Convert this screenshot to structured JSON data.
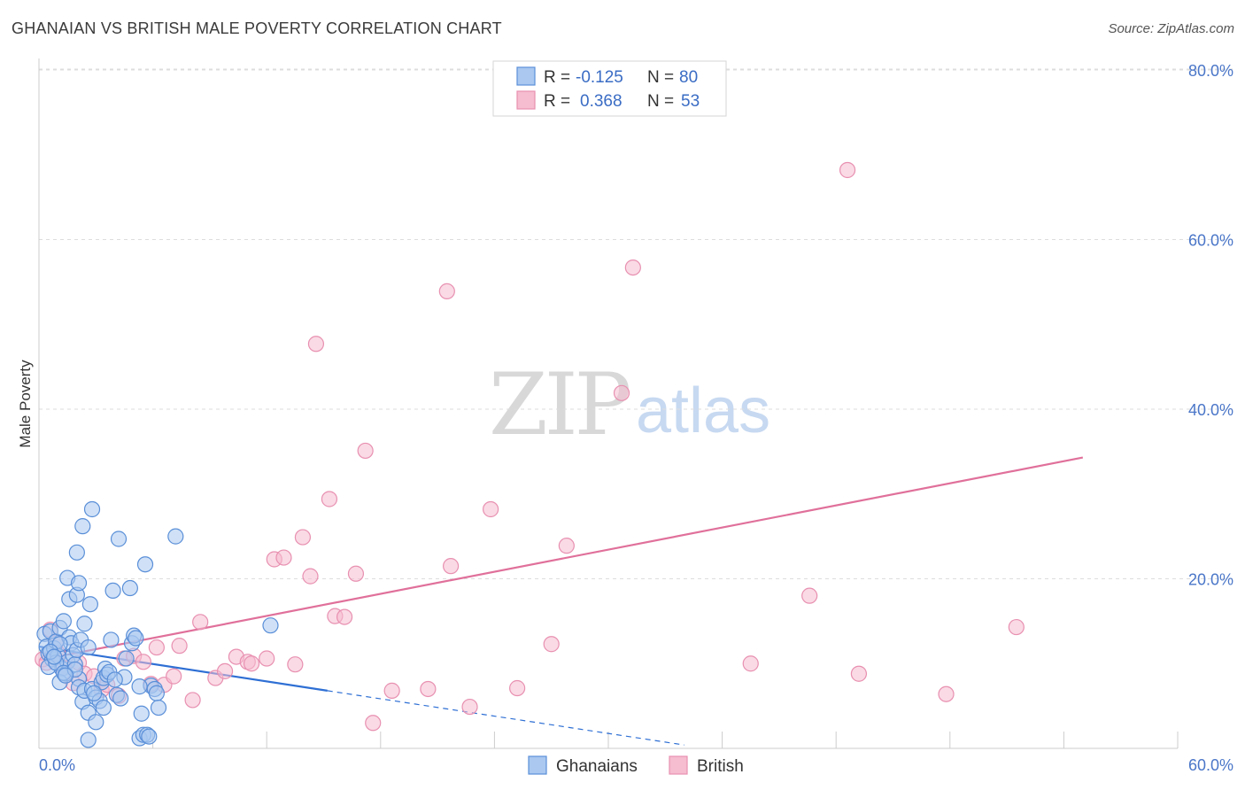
{
  "title": "GHANAIAN VS BRITISH MALE POVERTY CORRELATION CHART",
  "source": "Source: ZipAtlas.com",
  "watermark": {
    "zip": "ZIP",
    "atlas": "atlas"
  },
  "legend": {
    "rows": [
      {
        "r_label": "R =",
        "r_value": "-0.125",
        "n_label": "N =",
        "n_value": "80"
      },
      {
        "r_label": "R =",
        "r_value": "0.368",
        "n_label": "N =",
        "n_value": "53"
      }
    ]
  },
  "bottom_legend": [
    "Ghanaians",
    "British"
  ],
  "colors": {
    "blue_fill": "#aac8f0",
    "blue_stroke": "#5a8fd8",
    "blue_line": "#2e6fd4",
    "pink_fill": "#f6bcd0",
    "pink_stroke": "#e890b0",
    "pink_line": "#e0709a",
    "grid": "#dddddd",
    "tick": "#4a76c8"
  },
  "chart_data": {
    "type": "scatter",
    "title": "GHANAIAN VS BRITISH MALE POVERTY CORRELATION CHART",
    "xlabel": "",
    "ylabel": "Male Poverty",
    "xlim": [
      0,
      60
    ],
    "ylim": [
      0,
      82
    ],
    "x_tick_labels": [
      "0.0%",
      "60.0%"
    ],
    "y_ticks": [
      20,
      40,
      60,
      80
    ],
    "y_tick_labels": [
      "20.0%",
      "40.0%",
      "60.0%",
      "80.0%"
    ],
    "series": [
      {
        "name": "Ghanaians",
        "R": -0.125,
        "N": 80,
        "trend": {
          "x": [
            0,
            15.2
          ],
          "y": [
            12.0,
            6.8
          ]
        },
        "trend_extension": {
          "x": [
            15.2,
            34
          ],
          "y": [
            6.8,
            0.4
          ]
        },
        "points": [
          [
            0.3,
            13.5
          ],
          [
            0.4,
            12.0
          ],
          [
            0.5,
            11.2
          ],
          [
            0.6,
            13.8
          ],
          [
            0.7,
            10.5
          ],
          [
            0.8,
            11.8
          ],
          [
            0.9,
            12.6
          ],
          [
            1.0,
            10.9
          ],
          [
            1.1,
            14.2
          ],
          [
            1.2,
            9.4
          ],
          [
            1.3,
            15.0
          ],
          [
            1.4,
            8.8
          ],
          [
            1.5,
            10.2
          ],
          [
            1.6,
            13.1
          ],
          [
            1.7,
            12.4
          ],
          [
            1.8,
            11.0
          ],
          [
            1.9,
            9.9
          ],
          [
            2.0,
            11.6
          ],
          [
            2.1,
            8.2
          ],
          [
            2.2,
            12.8
          ],
          [
            2.4,
            14.7
          ],
          [
            2.6,
            11.9
          ],
          [
            0.5,
            9.6
          ],
          [
            0.9,
            10.1
          ],
          [
            1.1,
            7.8
          ],
          [
            1.3,
            8.9
          ],
          [
            1.5,
            20.1
          ],
          [
            1.6,
            17.6
          ],
          [
            2.0,
            18.1
          ],
          [
            2.1,
            19.5
          ],
          [
            2.3,
            26.2
          ],
          [
            2.0,
            23.1
          ],
          [
            2.7,
            17.0
          ],
          [
            2.8,
            28.2
          ],
          [
            1.9,
            9.3
          ],
          [
            2.1,
            7.2
          ],
          [
            2.3,
            5.5
          ],
          [
            2.4,
            6.8
          ],
          [
            2.6,
            4.2
          ],
          [
            2.6,
            1.0
          ],
          [
            2.8,
            7.0
          ],
          [
            3.0,
            6.0
          ],
          [
            3.2,
            5.6
          ],
          [
            3.3,
            7.8
          ],
          [
            3.4,
            8.3
          ],
          [
            3.5,
            9.4
          ],
          [
            3.6,
            8.7
          ],
          [
            3.7,
            9.0
          ],
          [
            3.8,
            12.8
          ],
          [
            3.9,
            18.6
          ],
          [
            4.1,
            6.3
          ],
          [
            4.2,
            24.7
          ],
          [
            4.3,
            5.9
          ],
          [
            4.5,
            8.4
          ],
          [
            4.6,
            10.6
          ],
          [
            4.8,
            18.9
          ],
          [
            4.9,
            12.4
          ],
          [
            5.0,
            13.3
          ],
          [
            5.1,
            13.0
          ],
          [
            5.3,
            1.2
          ],
          [
            5.4,
            4.1
          ],
          [
            5.5,
            1.6
          ],
          [
            5.7,
            1.6
          ],
          [
            5.8,
            1.4
          ],
          [
            5.6,
            21.7
          ],
          [
            5.9,
            7.4
          ],
          [
            6.1,
            7.0
          ],
          [
            6.2,
            6.5
          ],
          [
            6.3,
            4.8
          ],
          [
            3.0,
            3.1
          ],
          [
            1.1,
            12.3
          ],
          [
            0.6,
            11.4
          ],
          [
            0.8,
            10.8
          ],
          [
            1.4,
            8.6
          ],
          [
            3.4,
            4.8
          ],
          [
            5.3,
            7.3
          ],
          [
            7.2,
            25.0
          ],
          [
            12.2,
            14.5
          ],
          [
            2.9,
            6.5
          ],
          [
            4.0,
            8.1
          ]
        ]
      },
      {
        "name": "British",
        "R": 0.368,
        "N": 53,
        "trend": {
          "x": [
            0,
            55
          ],
          "y": [
            10.4,
            34.3
          ]
        },
        "points": [
          [
            0.2,
            10.5
          ],
          [
            0.4,
            10.1
          ],
          [
            0.6,
            14.0
          ],
          [
            0.9,
            12.5
          ],
          [
            1.0,
            11.2
          ],
          [
            1.3,
            9.5
          ],
          [
            1.8,
            7.7
          ],
          [
            2.1,
            10.1
          ],
          [
            2.4,
            8.8
          ],
          [
            2.9,
            8.5
          ],
          [
            3.3,
            6.9
          ],
          [
            3.6,
            7.5
          ],
          [
            4.2,
            6.2
          ],
          [
            4.5,
            10.6
          ],
          [
            5.0,
            10.9
          ],
          [
            5.5,
            10.2
          ],
          [
            5.9,
            7.6
          ],
          [
            6.2,
            11.9
          ],
          [
            6.6,
            7.5
          ],
          [
            7.1,
            8.5
          ],
          [
            7.4,
            12.1
          ],
          [
            8.1,
            5.7
          ],
          [
            8.5,
            14.9
          ],
          [
            9.3,
            8.3
          ],
          [
            9.8,
            9.1
          ],
          [
            10.4,
            10.8
          ],
          [
            11.0,
            10.2
          ],
          [
            11.2,
            10.0
          ],
          [
            12.0,
            10.6
          ],
          [
            12.4,
            22.3
          ],
          [
            12.9,
            22.5
          ],
          [
            13.5,
            9.9
          ],
          [
            13.9,
            24.9
          ],
          [
            14.3,
            20.3
          ],
          [
            14.6,
            47.7
          ],
          [
            15.3,
            29.4
          ],
          [
            15.6,
            15.6
          ],
          [
            16.1,
            15.5
          ],
          [
            16.7,
            20.6
          ],
          [
            17.2,
            35.1
          ],
          [
            17.6,
            3.0
          ],
          [
            18.6,
            6.8
          ],
          [
            20.5,
            7.0
          ],
          [
            21.5,
            53.9
          ],
          [
            21.7,
            21.5
          ],
          [
            22.7,
            4.9
          ],
          [
            23.8,
            28.2
          ],
          [
            25.2,
            7.1
          ],
          [
            27.0,
            12.3
          ],
          [
            27.8,
            23.9
          ],
          [
            30.7,
            41.9
          ],
          [
            31.3,
            56.7
          ],
          [
            37.5,
            10.0
          ]
        ],
        "extra_points": [
          [
            40.6,
            18.0
          ],
          [
            42.6,
            68.2
          ],
          [
            43.2,
            8.8
          ],
          [
            47.8,
            6.4
          ],
          [
            51.5,
            14.3
          ]
        ]
      }
    ]
  }
}
